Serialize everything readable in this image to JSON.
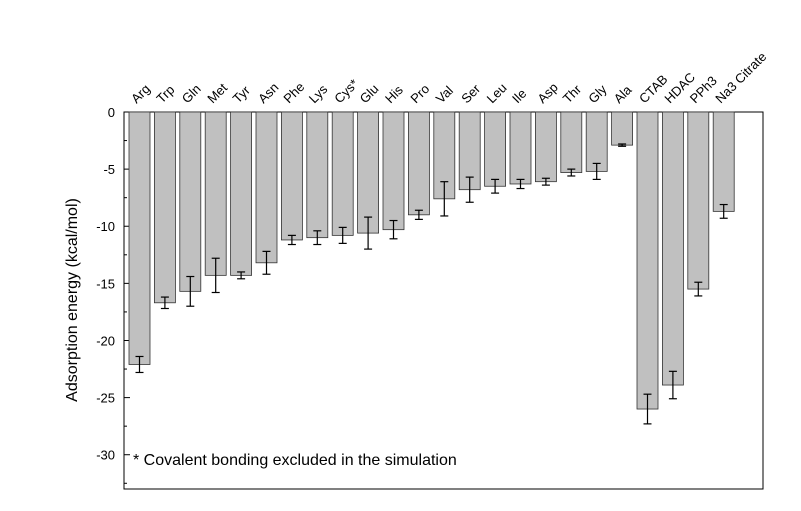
{
  "chart_data": {
    "type": "bar",
    "categories": [
      "Arg",
      "Trp",
      "Gln",
      "Met",
      "Tyr",
      "Asn",
      "Phe",
      "Lys",
      "Cys*",
      "Glu",
      "His",
      "Pro",
      "Val",
      "Ser",
      "Leu",
      "Ile",
      "Asp",
      "Thr",
      "Gly",
      "Ala",
      "CTAB",
      "HDAC",
      "PPh3",
      "Na3 Citrate"
    ],
    "values": [
      -22.1,
      -16.7,
      -15.7,
      -14.3,
      -14.3,
      -13.2,
      -11.2,
      -11.0,
      -10.8,
      -10.6,
      -10.3,
      -9.0,
      -7.6,
      -6.8,
      -6.5,
      -6.3,
      -6.1,
      -5.3,
      -5.2,
      -2.9,
      -26.0,
      -23.9,
      -15.5,
      -8.7
    ],
    "errors": [
      0.7,
      0.5,
      1.3,
      1.5,
      0.3,
      1.0,
      0.4,
      0.6,
      0.7,
      1.4,
      0.8,
      0.4,
      1.5,
      1.1,
      0.6,
      0.4,
      0.3,
      0.3,
      0.7,
      0.1,
      1.3,
      1.2,
      0.6,
      0.6
    ],
    "ylabel": "Adsorption energy (kcal/mol)",
    "xlabel": "",
    "ylim": [
      -33,
      0
    ],
    "yticks": [
      0,
      -5,
      -10,
      -15,
      -20,
      -25,
      -30
    ],
    "ytick_labels": [
      "0",
      "-5",
      "-10",
      "-15",
      "-20",
      "-25",
      "-30"
    ],
    "annotation": "* Covalent bonding excluded in the simulation",
    "bar_color": "#c0c0c0",
    "grid": false
  }
}
